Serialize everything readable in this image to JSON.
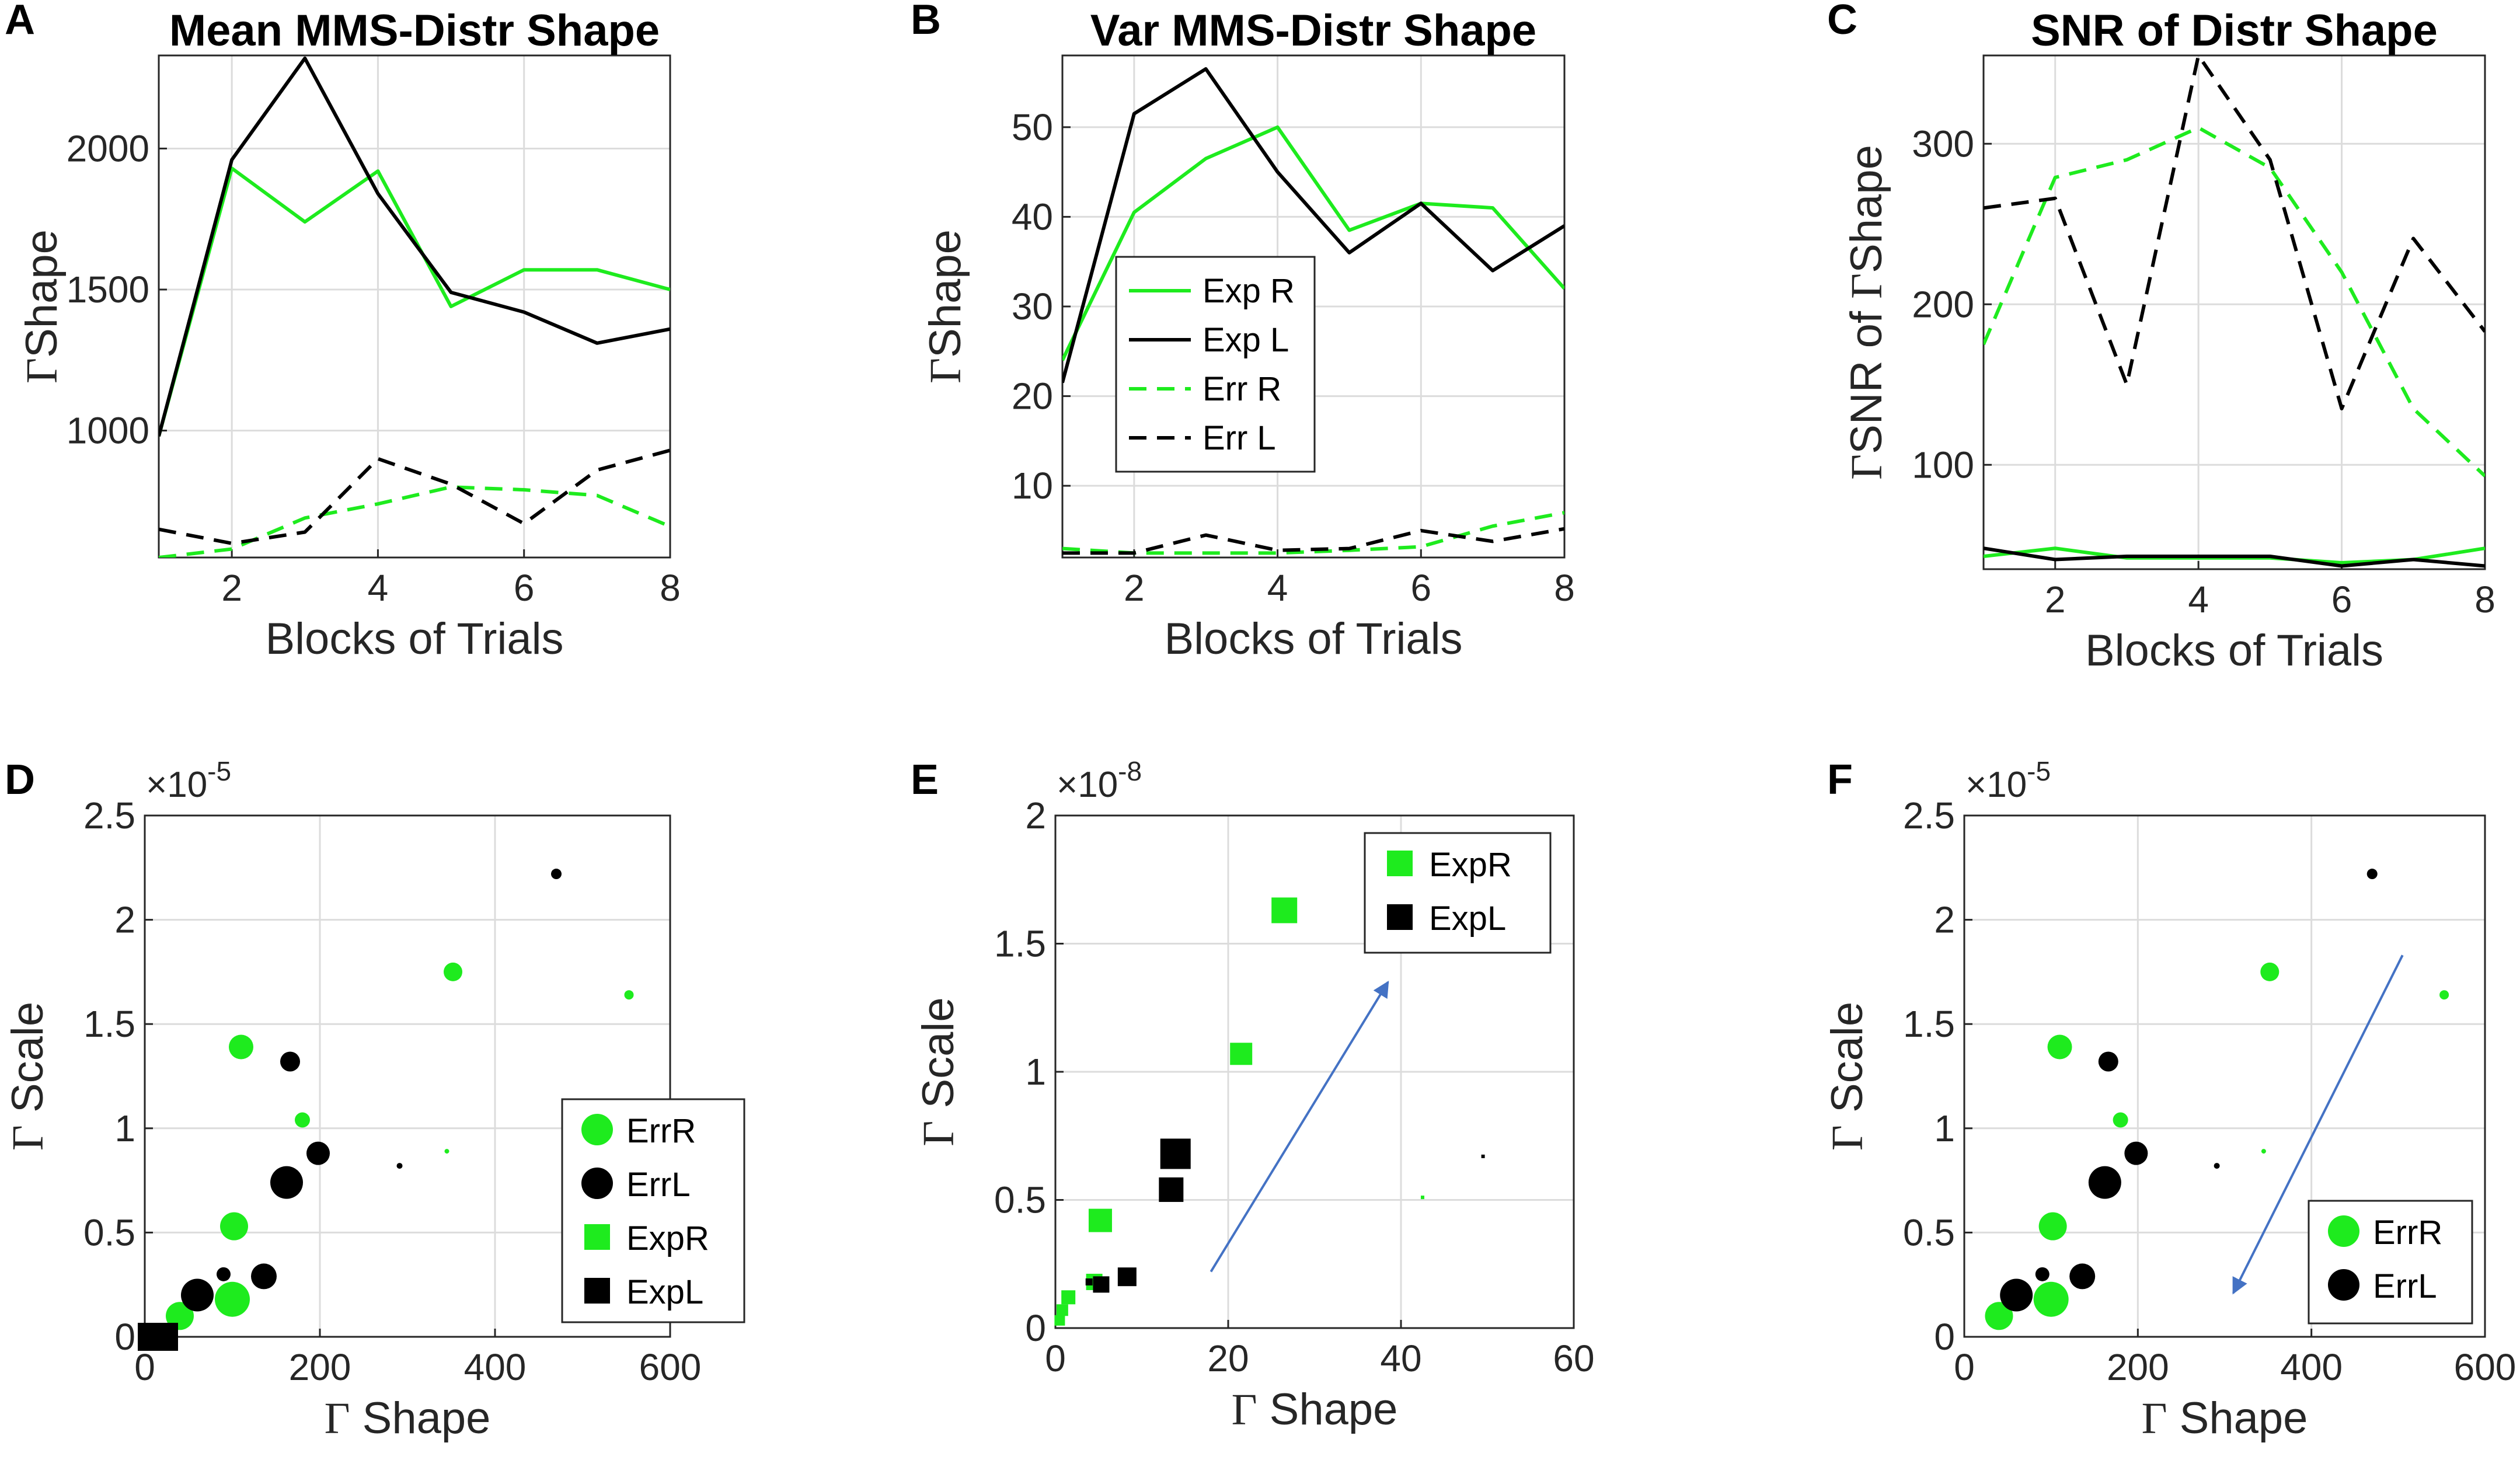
{
  "colors": {
    "green": "#1eeb1e",
    "black": "#000000",
    "grid": "#dcdcdc",
    "axis": "#262626",
    "arrow": "#4472c4"
  },
  "chart_data": [
    {
      "id": "A",
      "type": "line",
      "letter": "A",
      "title": "Mean MMS-Distr Shape",
      "xlabel": "Blocks of Trials",
      "ylabel_gamma": "Γ",
      "ylabel": "Shape",
      "xlim": [
        1,
        8
      ],
      "ylim": [
        550,
        2330
      ],
      "xticks": [
        2,
        4,
        6,
        8
      ],
      "yticks": [
        1000,
        1500,
        2000
      ],
      "x": [
        1,
        2,
        3,
        4,
        5,
        6,
        7,
        8
      ],
      "series": [
        {
          "name": "Exp R",
          "color": "green",
          "dash": "solid",
          "values": [
            980,
            1930,
            1740,
            1920,
            1440,
            1570,
            1570,
            1500
          ]
        },
        {
          "name": "Exp L",
          "color": "black",
          "dash": "solid",
          "values": [
            980,
            1960,
            2320,
            1840,
            1490,
            1420,
            1310,
            1360
          ]
        },
        {
          "name": "Err R",
          "color": "green",
          "dash": "dashed",
          "values": [
            550,
            580,
            690,
            740,
            800,
            790,
            770,
            660
          ]
        },
        {
          "name": "Err L",
          "color": "black",
          "dash": "dashed",
          "values": [
            650,
            600,
            640,
            900,
            810,
            670,
            860,
            930
          ]
        }
      ]
    },
    {
      "id": "B",
      "type": "line",
      "letter": "B",
      "title": "Var MMS-Distr Shape",
      "xlabel": "Blocks of Trials",
      "ylabel_gamma": "Γ",
      "ylabel": "Shape",
      "xlim": [
        1,
        8
      ],
      "ylim": [
        2,
        58
      ],
      "xticks": [
        2,
        4,
        6,
        8
      ],
      "yticks": [
        10,
        20,
        30,
        40,
        50
      ],
      "x": [
        1,
        2,
        3,
        4,
        5,
        6,
        7,
        8
      ],
      "series": [
        {
          "name": "Exp R",
          "color": "green",
          "dash": "solid",
          "values": [
            24,
            40.5,
            46.5,
            50,
            38.5,
            41.5,
            41,
            32
          ]
        },
        {
          "name": "Exp L",
          "color": "black",
          "dash": "solid",
          "values": [
            21.5,
            51.5,
            56.5,
            45,
            36,
            41.5,
            34,
            39
          ]
        },
        {
          "name": "Err R",
          "color": "green",
          "dash": "dashed",
          "values": [
            3,
            2.5,
            2.5,
            2.5,
            2.8,
            3.2,
            5.5,
            7
          ]
        },
        {
          "name": "Err L",
          "color": "black",
          "dash": "dashed",
          "values": [
            2.5,
            2.5,
            4.5,
            2.8,
            3,
            5,
            3.8,
            5.2
          ]
        }
      ],
      "legend": [
        "Exp R",
        "Exp L",
        "Err R",
        "Err L"
      ]
    },
    {
      "id": "C",
      "type": "line",
      "letter": "C",
      "title": "SNR of Distr Shape",
      "xlabel": "Blocks of Trials",
      "ylabel_gamma": "Γ",
      "ylabel": "SNR of ",
      "ylabel2_gamma": "Γ",
      "ylabel2": "Shape",
      "xlim": [
        1,
        8
      ],
      "ylim": [
        35,
        355
      ],
      "xticks": [
        2,
        4,
        6,
        8
      ],
      "yticks": [
        100,
        200,
        300
      ],
      "x": [
        1,
        2,
        3,
        4,
        5,
        6,
        7,
        8
      ],
      "series": [
        {
          "name": "Exp R",
          "color": "green",
          "dash": "solid",
          "values": [
            43,
            48,
            42,
            42,
            42,
            39,
            41,
            48
          ]
        },
        {
          "name": "Exp L",
          "color": "black",
          "dash": "solid",
          "values": [
            48,
            41,
            43,
            43,
            43,
            37,
            41,
            37
          ]
        },
        {
          "name": "Err R",
          "color": "green",
          "dash": "dashed",
          "values": [
            175,
            279,
            290,
            310,
            285,
            220,
            135,
            93
          ]
        },
        {
          "name": "Err L",
          "color": "black",
          "dash": "dashed",
          "values": [
            260,
            266,
            150,
            355,
            290,
            135,
            241,
            183
          ]
        }
      ]
    },
    {
      "id": "D",
      "type": "scatter",
      "letter": "D",
      "xlabel_gamma": "Γ",
      "xlabel": " Shape",
      "ylabel_gamma": "Γ",
      "ylabel": " Scale",
      "multiplier": "×10",
      "exponent": "-5",
      "xlim": [
        0,
        600
      ],
      "ylim": [
        0,
        2.5
      ],
      "xticks": [
        0,
        200,
        400,
        600
      ],
      "yticks": [
        0,
        0.5,
        1,
        1.5,
        2,
        2.5
      ],
      "ytick_labels": [
        "0",
        "0.5",
        "1",
        "1.5",
        "2",
        "2.5"
      ],
      "points": [
        {
          "x": 40,
          "y": 0.1,
          "s": 24,
          "m": "circle",
          "c": "green"
        },
        {
          "x": 100,
          "y": 0.18,
          "s": 30,
          "m": "circle",
          "c": "green"
        },
        {
          "x": 102,
          "y": 0.53,
          "s": 24,
          "m": "circle",
          "c": "green"
        },
        {
          "x": 110,
          "y": 1.39,
          "s": 21,
          "m": "circle",
          "c": "green"
        },
        {
          "x": 180,
          "y": 1.04,
          "s": 13,
          "m": "circle",
          "c": "green"
        },
        {
          "x": 352,
          "y": 1.75,
          "s": 16,
          "m": "circle",
          "c": "green"
        },
        {
          "x": 553,
          "y": 1.64,
          "s": 8,
          "m": "circle",
          "c": "green"
        },
        {
          "x": 345,
          "y": 0.89,
          "s": 4,
          "m": "circle",
          "c": "green"
        },
        {
          "x": 60,
          "y": 0.2,
          "s": 28,
          "m": "circle",
          "c": "black"
        },
        {
          "x": 90,
          "y": 0.3,
          "s": 12,
          "m": "circle",
          "c": "black"
        },
        {
          "x": 136,
          "y": 0.29,
          "s": 22,
          "m": "circle",
          "c": "black"
        },
        {
          "x": 162,
          "y": 0.74,
          "s": 28,
          "m": "circle",
          "c": "black"
        },
        {
          "x": 166,
          "y": 1.32,
          "s": 17,
          "m": "circle",
          "c": "black"
        },
        {
          "x": 198,
          "y": 0.88,
          "s": 20,
          "m": "circle",
          "c": "black"
        },
        {
          "x": 291,
          "y": 0.82,
          "s": 5,
          "m": "circle",
          "c": "black"
        },
        {
          "x": 470,
          "y": 2.22,
          "s": 9,
          "m": "circle",
          "c": "black"
        },
        {
          "x": 10,
          "y": 0.0,
          "s": 24,
          "m": "square",
          "c": "green"
        },
        {
          "x": 22,
          "y": 0.0,
          "s": 24,
          "m": "square",
          "c": "black"
        },
        {
          "x": 8,
          "y": 0.0,
          "s": 24,
          "m": "square",
          "c": "black"
        }
      ],
      "legend": [
        {
          "label": "ErrR",
          "m": "circle",
          "c": "green"
        },
        {
          "label": "ErrL",
          "m": "circle",
          "c": "black"
        },
        {
          "label": "ExpR",
          "m": "square",
          "c": "green"
        },
        {
          "label": "ExpL",
          "m": "square",
          "c": "black"
        }
      ]
    },
    {
      "id": "E",
      "type": "scatter",
      "letter": "E",
      "xlabel_gamma": "Γ",
      "xlabel": " Shape",
      "ylabel_gamma": "Γ",
      "ylabel": " Scale",
      "multiplier": "×10",
      "exponent": "-8",
      "xlim": [
        0,
        60
      ],
      "ylim": [
        0,
        2
      ],
      "xticks": [
        0,
        20,
        40,
        60
      ],
      "yticks": [
        0,
        0.5,
        1,
        1.5,
        2
      ],
      "ytick_labels": [
        "0",
        "0.5",
        "1",
        "1.5",
        "2"
      ],
      "points": [
        {
          "x": 26.5,
          "y": 1.63,
          "s": 22,
          "m": "square",
          "c": "green"
        },
        {
          "x": 21.5,
          "y": 1.07,
          "s": 19,
          "m": "square",
          "c": "green"
        },
        {
          "x": 5.2,
          "y": 0.42,
          "s": 20,
          "m": "square",
          "c": "green"
        },
        {
          "x": 4.5,
          "y": 0.18,
          "s": 14,
          "m": "square",
          "c": "green"
        },
        {
          "x": 1.5,
          "y": 0.12,
          "s": 12,
          "m": "square",
          "c": "green"
        },
        {
          "x": 0.8,
          "y": 0.07,
          "s": 10,
          "m": "square",
          "c": "green"
        },
        {
          "x": 0.5,
          "y": 0.03,
          "s": 9,
          "m": "square",
          "c": "green"
        },
        {
          "x": 42.5,
          "y": 0.51,
          "s": 3,
          "m": "square",
          "c": "green"
        },
        {
          "x": 13.9,
          "y": 0.68,
          "s": 26,
          "m": "square",
          "c": "black"
        },
        {
          "x": 13.4,
          "y": 0.54,
          "s": 21,
          "m": "square",
          "c": "black"
        },
        {
          "x": 8.3,
          "y": 0.2,
          "s": 16,
          "m": "square",
          "c": "black"
        },
        {
          "x": 5.3,
          "y": 0.17,
          "s": 14,
          "m": "square",
          "c": "black"
        },
        {
          "x": 3.9,
          "y": 0.18,
          "s": 6,
          "m": "square",
          "c": "black"
        },
        {
          "x": 49.5,
          "y": 0.67,
          "s": 3,
          "m": "square",
          "c": "black"
        }
      ],
      "arrow": {
        "from": [
          18,
          0.22
        ],
        "to": [
          38.5,
          1.35
        ]
      },
      "legend": [
        {
          "label": "ExpR",
          "m": "square",
          "c": "green"
        },
        {
          "label": "ExpL",
          "m": "square",
          "c": "black"
        }
      ]
    },
    {
      "id": "F",
      "type": "scatter",
      "letter": "F",
      "xlabel_gamma": "Γ",
      "xlabel": " Shape",
      "ylabel_gamma": "Γ",
      "ylabel": " Scale",
      "multiplier": "×10",
      "exponent": "-5",
      "xlim": [
        0,
        600
      ],
      "ylim": [
        0,
        2.5
      ],
      "xticks": [
        0,
        200,
        400,
        600
      ],
      "yticks": [
        0,
        0.5,
        1,
        1.5,
        2,
        2.5
      ],
      "ytick_labels": [
        "0",
        "0.5",
        "1",
        "1.5",
        "2",
        "2.5"
      ],
      "points": [
        {
          "x": 40,
          "y": 0.1,
          "s": 24,
          "m": "circle",
          "c": "green"
        },
        {
          "x": 100,
          "y": 0.18,
          "s": 30,
          "m": "circle",
          "c": "green"
        },
        {
          "x": 102,
          "y": 0.53,
          "s": 24,
          "m": "circle",
          "c": "green"
        },
        {
          "x": 110,
          "y": 1.39,
          "s": 21,
          "m": "circle",
          "c": "green"
        },
        {
          "x": 180,
          "y": 1.04,
          "s": 13,
          "m": "circle",
          "c": "green"
        },
        {
          "x": 352,
          "y": 1.75,
          "s": 16,
          "m": "circle",
          "c": "green"
        },
        {
          "x": 553,
          "y": 1.64,
          "s": 8,
          "m": "circle",
          "c": "green"
        },
        {
          "x": 345,
          "y": 0.89,
          "s": 4,
          "m": "circle",
          "c": "green"
        },
        {
          "x": 60,
          "y": 0.2,
          "s": 28,
          "m": "circle",
          "c": "black"
        },
        {
          "x": 90,
          "y": 0.3,
          "s": 12,
          "m": "circle",
          "c": "black"
        },
        {
          "x": 136,
          "y": 0.29,
          "s": 22,
          "m": "circle",
          "c": "black"
        },
        {
          "x": 162,
          "y": 0.74,
          "s": 28,
          "m": "circle",
          "c": "black"
        },
        {
          "x": 166,
          "y": 1.32,
          "s": 17,
          "m": "circle",
          "c": "black"
        },
        {
          "x": 198,
          "y": 0.88,
          "s": 20,
          "m": "circle",
          "c": "black"
        },
        {
          "x": 291,
          "y": 0.82,
          "s": 5,
          "m": "circle",
          "c": "black"
        },
        {
          "x": 470,
          "y": 2.22,
          "s": 9,
          "m": "circle",
          "c": "black"
        }
      ],
      "arrow": {
        "from": [
          505,
          1.83
        ],
        "to": [
          310,
          0.21
        ]
      },
      "legend": [
        {
          "label": "ErrR",
          "m": "circle",
          "c": "green"
        },
        {
          "label": "ErrL",
          "m": "circle",
          "c": "black"
        }
      ]
    }
  ]
}
